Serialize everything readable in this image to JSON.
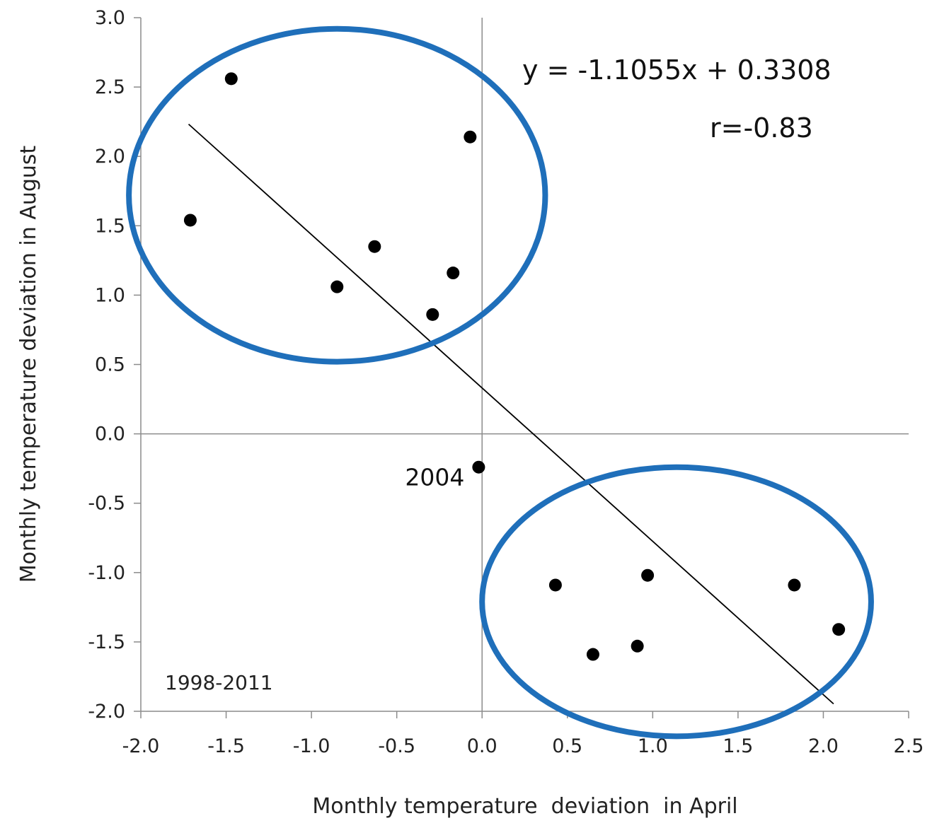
{
  "chart_data": {
    "type": "scatter",
    "xlabel": "Monthly temperature  deviation  in April",
    "ylabel": "Monthly temperature deviation in August",
    "xlim": [
      -2.0,
      2.5
    ],
    "ylim": [
      -2.0,
      3.0
    ],
    "x_ticks": [
      "-2.0",
      "-1.5",
      "-1.0",
      "-0.5",
      "0.0",
      "0.5",
      "1.0",
      "1.5",
      "2.0",
      "2.5"
    ],
    "y_ticks": [
      "3.0",
      "2.5",
      "2.0",
      "1.5",
      "1.0",
      "0.5",
      "0.0",
      "-0.5",
      "-1.0",
      "-1.5",
      "-2.0"
    ],
    "grid": false,
    "points": [
      {
        "x": -1.71,
        "y": 1.54
      },
      {
        "x": -1.47,
        "y": 2.56
      },
      {
        "x": -0.85,
        "y": 1.06
      },
      {
        "x": -0.63,
        "y": 1.35
      },
      {
        "x": -0.29,
        "y": 0.86
      },
      {
        "x": -0.17,
        "y": 1.16
      },
      {
        "x": -0.07,
        "y": 2.14
      },
      {
        "x": -0.02,
        "y": -0.24,
        "label": "2004"
      },
      {
        "x": 0.43,
        "y": -1.09
      },
      {
        "x": 0.65,
        "y": -1.59
      },
      {
        "x": 0.91,
        "y": -1.53
      },
      {
        "x": 0.97,
        "y": -1.02
      },
      {
        "x": 1.83,
        "y": -1.09
      },
      {
        "x": 2.09,
        "y": -1.41
      }
    ],
    "trendline": {
      "slope": -1.1055,
      "intercept": 0.3308,
      "x_range": [
        -1.72,
        2.06
      ]
    },
    "annotations": {
      "equation": "y = -1.1055x + 0.3308",
      "r": "r=-0.83",
      "period": "1998-2011"
    },
    "ellipses": [
      {
        "cx": -0.85,
        "cy": 1.72,
        "rx": 1.22,
        "ry": 1.2
      },
      {
        "cx": 1.14,
        "cy": -1.21,
        "rx": 1.14,
        "ry": 0.97
      }
    ],
    "colors": {
      "ellipse": "#1f6fba",
      "points": "#000000",
      "trendline": "#000000",
      "axis": "#8c8c8c"
    }
  }
}
